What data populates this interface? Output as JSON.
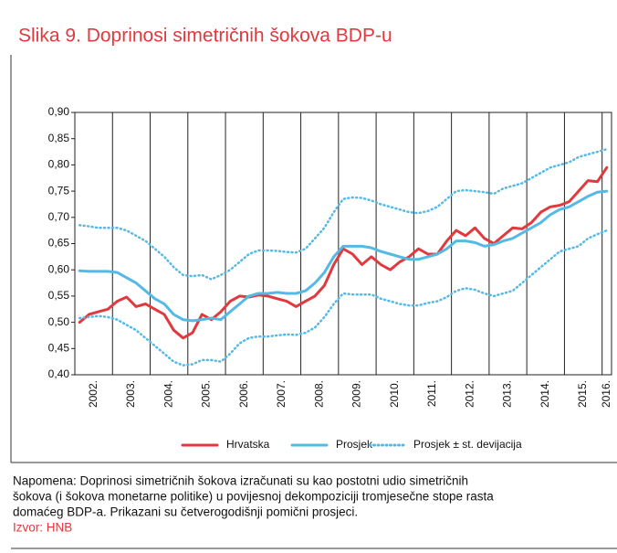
{
  "chart_data": {
    "type": "line",
    "title": "Slika 9. Doprinosi simetričnih šokova BDP-u",
    "categories": [
      null,
      "2002.",
      null,
      null,
      null,
      "2003.",
      null,
      null,
      null,
      "2004.",
      null,
      null,
      null,
      "2005.",
      null,
      null,
      null,
      "2006.",
      null,
      null,
      null,
      "2007.",
      null,
      null,
      null,
      "2008.",
      null,
      null,
      null,
      "2009.",
      null,
      null,
      null,
      "2010.",
      null,
      null,
      null,
      "2011.",
      null,
      null,
      null,
      "2012.",
      null,
      null,
      null,
      "2013.",
      null,
      null,
      null,
      "2014.",
      null,
      null,
      null,
      "2015.",
      null,
      null,
      "2016."
    ],
    "series": [
      {
        "name": "Hrvatska",
        "color": "#e03a3e",
        "style": "solid",
        "values": [
          0.5,
          0.515,
          0.52,
          0.525,
          0.54,
          0.548,
          0.53,
          0.535,
          0.525,
          0.515,
          0.485,
          0.47,
          0.48,
          0.515,
          0.505,
          0.52,
          0.54,
          0.55,
          0.548,
          0.552,
          0.55,
          0.545,
          0.54,
          0.53,
          0.54,
          0.55,
          0.57,
          0.61,
          0.64,
          0.63,
          0.61,
          0.625,
          0.61,
          0.6,
          0.615,
          0.625,
          0.64,
          0.63,
          0.63,
          0.655,
          0.675,
          0.665,
          0.68,
          0.66,
          0.65,
          0.665,
          0.68,
          0.678,
          0.69,
          0.71,
          0.72,
          0.723,
          0.73,
          0.75,
          0.77,
          0.768,
          0.795
        ]
      },
      {
        "name": "Prosjek",
        "color": "#55b9e6",
        "style": "solid",
        "values": [
          0.598,
          0.597,
          0.597,
          0.597,
          0.595,
          0.585,
          0.575,
          0.56,
          0.545,
          0.535,
          0.515,
          0.505,
          0.503,
          0.505,
          0.508,
          0.505,
          0.52,
          0.535,
          0.55,
          0.555,
          0.555,
          0.557,
          0.555,
          0.555,
          0.56,
          0.575,
          0.595,
          0.625,
          0.645,
          0.645,
          0.645,
          0.642,
          0.635,
          0.63,
          0.625,
          0.62,
          0.62,
          0.625,
          0.63,
          0.64,
          0.655,
          0.655,
          0.652,
          0.645,
          0.648,
          0.655,
          0.66,
          0.67,
          0.68,
          0.69,
          0.705,
          0.715,
          0.72,
          0.73,
          0.74,
          0.748,
          0.75
        ]
      },
      {
        "name": "Prosjek ± st. devijacija",
        "color": "#55b9e6",
        "style": "dotted",
        "upper": [
          0.685,
          0.683,
          0.68,
          0.68,
          0.68,
          0.675,
          0.665,
          0.655,
          0.64,
          0.625,
          0.605,
          0.59,
          0.588,
          0.59,
          0.582,
          0.59,
          0.6,
          0.615,
          0.63,
          0.637,
          0.637,
          0.636,
          0.634,
          0.633,
          0.64,
          0.66,
          0.68,
          0.71,
          0.735,
          0.738,
          0.737,
          0.732,
          0.725,
          0.72,
          0.715,
          0.71,
          0.708,
          0.712,
          0.72,
          0.735,
          0.75,
          0.752,
          0.75,
          0.748,
          0.745,
          0.755,
          0.76,
          0.765,
          0.775,
          0.785,
          0.795,
          0.8,
          0.805,
          0.815,
          0.82,
          0.825,
          0.83
        ],
        "lower": [
          0.508,
          0.51,
          0.512,
          0.51,
          0.505,
          0.495,
          0.485,
          0.47,
          0.455,
          0.44,
          0.425,
          0.418,
          0.42,
          0.428,
          0.428,
          0.425,
          0.44,
          0.46,
          0.47,
          0.473,
          0.473,
          0.475,
          0.477,
          0.476,
          0.48,
          0.49,
          0.51,
          0.535,
          0.555,
          0.553,
          0.553,
          0.553,
          0.545,
          0.54,
          0.535,
          0.532,
          0.532,
          0.537,
          0.54,
          0.548,
          0.56,
          0.565,
          0.562,
          0.555,
          0.55,
          0.555,
          0.56,
          0.575,
          0.59,
          0.605,
          0.62,
          0.635,
          0.64,
          0.645,
          0.66,
          0.668,
          0.675
        ]
      }
    ],
    "ylim": [
      0.4,
      0.9
    ],
    "yticks": [
      {
        "value": 0.4,
        "label": "0,40"
      },
      {
        "value": 0.45,
        "label": "0,45"
      },
      {
        "value": 0.5,
        "label": "0,50"
      },
      {
        "value": 0.55,
        "label": "0,55"
      },
      {
        "value": 0.6,
        "label": "0,60"
      },
      {
        "value": 0.65,
        "label": "0,65"
      },
      {
        "value": 0.7,
        "label": "0,70"
      },
      {
        "value": 0.75,
        "label": "0,75"
      },
      {
        "value": 0.8,
        "label": "0,80"
      },
      {
        "value": 0.85,
        "label": "0,85"
      },
      {
        "value": 0.9,
        "label": "0,90"
      }
    ],
    "grid": false,
    "legend": "bottom",
    "note": [
      "Napomena: Doprinosi simetričnih šokova izračunati su kao postotni udio simetričnih",
      "šokova (i šokova monetarne politike) u povijesnoj dekompoziciji tromjesečne stope rasta",
      "domaćeg BDP-a. Prikazani su četverogodišnji pomični prosjeci."
    ],
    "source": "Izvor: HNB"
  }
}
